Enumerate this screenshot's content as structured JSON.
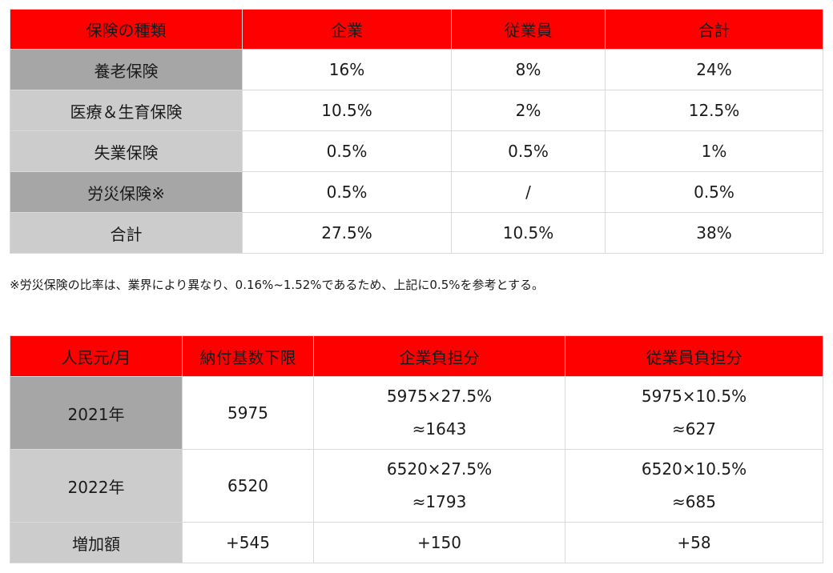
{
  "colors": {
    "header_bg": "#ff0000",
    "row_label_dark": "#a6a6a6",
    "row_label_light": "#cccccc",
    "border": "#d9d9d9"
  },
  "insurance_table": {
    "headers": [
      "保険の種類",
      "企業",
      "従業員",
      "合計"
    ],
    "rows": [
      {
        "label": "養老保険",
        "company": "16%",
        "employee": "8%",
        "total": "24%"
      },
      {
        "label": "医療＆生育保険",
        "company": "10.5%",
        "employee": "2%",
        "total": "12.5%"
      },
      {
        "label": "失業保険",
        "company": "0.5%",
        "employee": "0.5%",
        "total": "1%"
      },
      {
        "label": "労災保険※",
        "company": "0.5%",
        "employee": "/",
        "total": "0.5%"
      },
      {
        "label": "合計",
        "company": "27.5%",
        "employee": "10.5%",
        "total": "38%"
      }
    ]
  },
  "note": "※労災保険の比率は、業界により異なり、0.16%~1.52%であるため、上記に0.5%を参考とする。",
  "burden_table": {
    "headers": [
      "人民元/月",
      "納付基数下限",
      "企業負担分",
      "従業員負担分"
    ],
    "rows": [
      {
        "label": "2021年",
        "base": "5975",
        "company_formula": "5975×27.5%",
        "company_result": "≈1643",
        "employee_formula": "5975×10.5%",
        "employee_result": "≈627"
      },
      {
        "label": "2022年",
        "base": "6520",
        "company_formula": "6520×27.5%",
        "company_result": "≈1793",
        "employee_formula": "6520×10.5%",
        "employee_result": "≈685"
      }
    ],
    "increase_row": {
      "label": "増加額",
      "base": "+545",
      "company": "+150",
      "employee": "+58"
    }
  }
}
